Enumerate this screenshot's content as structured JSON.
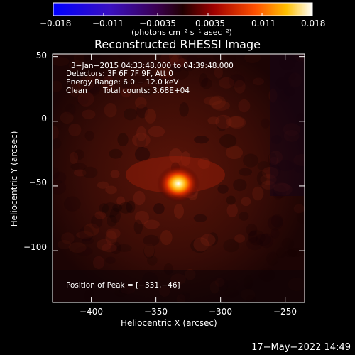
{
  "chart_data": {
    "type": "heatmap",
    "title": "Reconstructed RHESSI Image",
    "xlabel": "Heliocentric X (arcsec)",
    "ylabel": "Heliocentric Y (arcsec)",
    "xlim": [
      -430,
      -235
    ],
    "ylim": [
      -140,
      52
    ],
    "xticks": [
      -400,
      -350,
      -300,
      -250
    ],
    "yticks": [
      50,
      0,
      -50,
      -100
    ],
    "xtick_labels": [
      "−400",
      "−350",
      "−300",
      "−250"
    ],
    "ytick_labels": [
      "50",
      "0",
      "−50",
      "−100"
    ],
    "colorbar": {
      "range": [
        -0.018,
        0.018
      ],
      "ticks": [
        -0.018,
        -0.011,
        -0.0035,
        0.0035,
        0.011,
        0.018
      ],
      "tick_labels": [
        "−0.018",
        "−0.011",
        "−0.0035",
        "0.0035",
        "0.011",
        "0.018"
      ],
      "units": "(photons cm⁻² s⁻¹ asec⁻²)",
      "colors": [
        "#0000ff",
        "#5a00a0",
        "#400030",
        "#c00000",
        "#ff8000",
        "#ffffff"
      ]
    },
    "annotations": {
      "time": "3−Jan−2015 04:33:48.000 to 04:39:48.000",
      "detectors": "Detectors: 3F 6F 7F 9F, Att 0",
      "energy": "Energy Range: 6.0 − 12.0 keV",
      "method": "Clean",
      "counts": "Total counts: 3.68E+04",
      "peak": "Position of Peak = [−331,−46]"
    },
    "peak": {
      "x": -331,
      "y": -46
    },
    "date_stamp": "17−May−2022 14:49"
  }
}
